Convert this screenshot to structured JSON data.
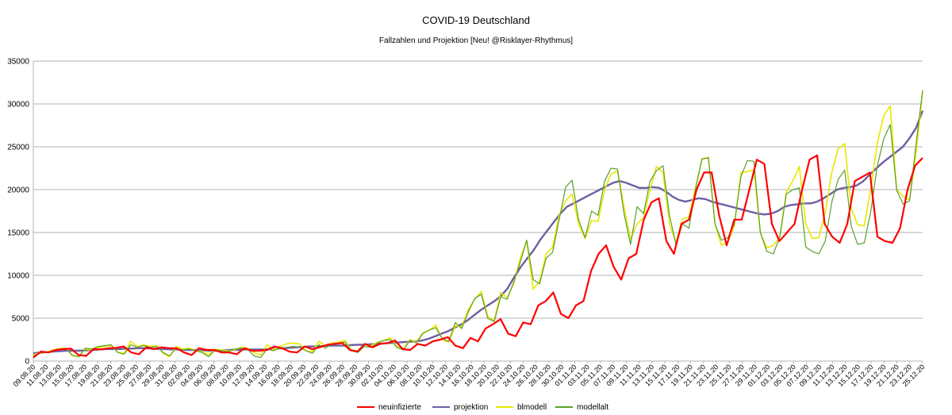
{
  "chart_data": {
    "type": "line",
    "title": "COVID-19 Deutschland",
    "subtitle": "Fallzahlen und Projektion [Neu! @Risklayer-Rhythmus]",
    "xlabel": "",
    "ylabel": "",
    "ylim": [
      0,
      35000
    ],
    "y_ticks": [
      "0",
      "5000",
      "10000",
      "15000",
      "20000",
      "25000",
      "30000",
      "35000"
    ],
    "grid": "horizontal",
    "legend_position": "bottom",
    "x_tick_labels": [
      "09.08.20",
      "11.08.20",
      "13.08.20",
      "15.08.20",
      "17.08.20",
      "19.08.20",
      "21.08.20",
      "23.08.20",
      "25.08.20",
      "27.08.20",
      "29.08.20",
      "31.08.20",
      "02.09.20",
      "04.09.20",
      "06.09.20",
      "08.09.20",
      "10.09.20",
      "12.09.20",
      "14.09.20",
      "16.09.20",
      "18.09.20",
      "20.09.20",
      "22.09.20",
      "24.09.20",
      "26.09.20",
      "28.09.20",
      "30.09.20",
      "02.10.20",
      "04.10.20",
      "06.10.20",
      "08.10.20",
      "10.10.20",
      "12.10.20",
      "14.10.20",
      "16.10.20",
      "18.10.20",
      "20.10.20",
      "22.10.20",
      "24.10.20",
      "26.10.20",
      "28.10.20",
      "30.10.20",
      "01.11.20",
      "03.11.20",
      "05.11.20",
      "07.11.20",
      "09.11.20",
      "11.11.20",
      "13.11.20",
      "15.11.20",
      "17.11.20",
      "19.11.20",
      "21.11.20",
      "23.11.20",
      "25.11.20",
      "27.11.20",
      "29.11.20",
      "01.12.20",
      "03.12.20",
      "05.12.20",
      "07.12.20",
      "09.12.20",
      "11.12.20",
      "13.12.20",
      "15.12.20",
      "17.12.20",
      "19.12.20",
      "21.12.20",
      "23.12.20",
      "25.12.20"
    ],
    "series": [
      {
        "name": "neuinfizierte",
        "color": "#ff0000",
        "values": [
          400,
          1100,
          1000,
          1300,
          1400,
          1450,
          700,
          600,
          1400,
          1350,
          1500,
          1550,
          1700,
          1000,
          800,
          1600,
          1400,
          1600,
          1500,
          1500,
          1000,
          700,
          1500,
          1300,
          1300,
          1000,
          1000,
          800,
          1500,
          1200,
          1200,
          1300,
          1700,
          1500,
          1100,
          1000,
          1700,
          1400,
          1600,
          1900,
          2000,
          2100,
          1300,
          1100,
          2000,
          1600,
          2000,
          2100,
          2400,
          1400,
          1300,
          2000,
          1800,
          2300,
          2500,
          2800,
          1800,
          1500,
          2700,
          2300,
          3800,
          4300,
          4900,
          3200,
          2900,
          4500,
          4300,
          6500,
          7000,
          8000,
          5500,
          5000,
          6500,
          7000,
          10500,
          12500,
          13500,
          11000,
          9500,
          12000,
          12500,
          16500,
          18500,
          19000,
          14000,
          12500,
          16000,
          16500,
          20000,
          22000,
          22000,
          17000,
          13500,
          16500,
          16500,
          20000,
          23500,
          23000,
          16000,
          14000,
          15000,
          16000,
          20000,
          23500,
          24000,
          16000,
          14500,
          13800,
          16000,
          21000,
          21500,
          22000,
          14500,
          14000,
          13800,
          15500,
          20000,
          22800,
          23700
        ]
      },
      {
        "name": "projektion",
        "color": "#6f5ea4",
        "values": [
          900,
          1000,
          1050,
          1100,
          1150,
          1200,
          1200,
          1200,
          1250,
          1300,
          1350,
          1400,
          1400,
          1400,
          1450,
          1450,
          1500,
          1500,
          1450,
          1400,
          1400,
          1350,
          1350,
          1300,
          1300,
          1250,
          1250,
          1200,
          1200,
          1250,
          1300,
          1300,
          1350,
          1350,
          1350,
          1350,
          1400,
          1450,
          1500,
          1550,
          1600,
          1650,
          1700,
          1700,
          1750,
          1800,
          1800,
          1800,
          1850,
          1900,
          1900,
          1950,
          2000,
          2050,
          2100,
          2150,
          2200,
          2250,
          2300,
          2400,
          2600,
          2900,
          3200,
          3500,
          3900,
          4300,
          4800,
          5400,
          6000,
          6500,
          7000,
          7600,
          8500,
          9800,
          11000,
          12000,
          13000,
          14200,
          15200,
          16200,
          17200,
          18000,
          18400,
          18800,
          19200,
          19600,
          20000,
          20400,
          20800,
          21000,
          20800,
          20500,
          20200,
          20200,
          20300,
          20200,
          19800,
          19200,
          18800,
          18600,
          18800,
          19000,
          18900,
          18600,
          18400,
          18200,
          18000,
          17800,
          17600,
          17400,
          17200,
          17100,
          17200,
          17500,
          18000,
          18200,
          18300,
          18400,
          18400,
          18600,
          19000,
          19500,
          20000,
          20200,
          20300,
          20500,
          21000,
          21800,
          22500,
          23200,
          23800,
          24400,
          25000,
          26000,
          27200,
          29200
        ]
      },
      {
        "name": "blmodell",
        "color": "#e8e800",
        "values": [
          700,
          1000,
          1050,
          1300,
          1450,
          1500,
          600,
          500,
          1400,
          1300,
          1600,
          1700,
          1800,
          1000,
          900,
          2300,
          1700,
          1900,
          1700,
          1800,
          900,
          500,
          1700,
          1400,
          1500,
          1200,
          1100,
          700,
          1400,
          1300,
          1200,
          1300,
          1600,
          1500,
          1000,
          700,
          1900,
          1300,
          1700,
          2000,
          2100,
          2000,
          1200,
          1100,
          2300,
          1800,
          2100,
          2200,
          2400,
          1300,
          1200,
          1900,
          1800,
          2200,
          2400,
          2700,
          1700,
          1400,
          2500,
          2200,
          3300,
          3600,
          4200,
          2500,
          2200,
          4100,
          4000,
          6000,
          7200,
          8100,
          5200,
          4700,
          8000,
          7400,
          9000,
          12000,
          14000,
          8400,
          9300,
          12500,
          13300,
          17000,
          18700,
          19500,
          16000,
          14300,
          16400,
          16300,
          20000,
          21800,
          22200,
          18000,
          14200,
          16000,
          16700,
          20000,
          22700,
          22000,
          16000,
          13800,
          16600,
          16800,
          20200,
          23500,
          23800,
          16000,
          13500,
          13900,
          15800,
          22000,
          22100,
          22300,
          15000,
          13200,
          13500,
          14500,
          19800,
          21000,
          22700,
          16000,
          14300,
          14400,
          17400,
          22000,
          24800,
          25400,
          17800,
          15900,
          15800,
          20000,
          25400,
          28600,
          29800,
          20000,
          19200,
          18800,
          24400,
          31500
        ]
      },
      {
        "name": "modellalt",
        "color": "#5aa02c",
        "values": [
          600,
          900,
          1000,
          1200,
          1400,
          1450,
          700,
          500,
          1500,
          1400,
          1700,
          1800,
          1900,
          1000,
          800,
          1900,
          1600,
          1800,
          1600,
          1700,
          1000,
          600,
          1500,
          1300,
          1400,
          1200,
          1000,
          500,
          1300,
          1200,
          1100,
          1400,
          1500,
          1400,
          600,
          400,
          1400,
          1200,
          1500,
          1600,
          1700,
          1600,
          1200,
          900,
          1900,
          1500,
          2000,
          2100,
          2200,
          1200,
          1000,
          1700,
          1600,
          2100,
          2400,
          2500,
          1600,
          1300,
          2400,
          2100,
          3200,
          3600,
          3900,
          2600,
          2300,
          4500,
          3800,
          5700,
          7300,
          7800,
          5000,
          4600,
          7500,
          7200,
          9200,
          11500,
          14100,
          9500,
          9000,
          12000,
          12700,
          16500,
          20300,
          21100,
          16500,
          14400,
          17500,
          17000,
          21000,
          22500,
          22400,
          17200,
          13600,
          18000,
          17200,
          21000,
          22200,
          22800,
          17000,
          13600,
          16000,
          15500,
          20000,
          23600,
          23700,
          16000,
          14100,
          14400,
          16000,
          21500,
          23400,
          23300,
          15000,
          12800,
          12500,
          14500,
          19500,
          20000,
          20200,
          13300,
          12800,
          12500,
          14000,
          18500,
          21200,
          22300,
          15700,
          13600,
          13800,
          17400,
          22700,
          25900,
          27600,
          19900,
          18300,
          18700,
          25400,
          31600
        ]
      }
    ]
  }
}
